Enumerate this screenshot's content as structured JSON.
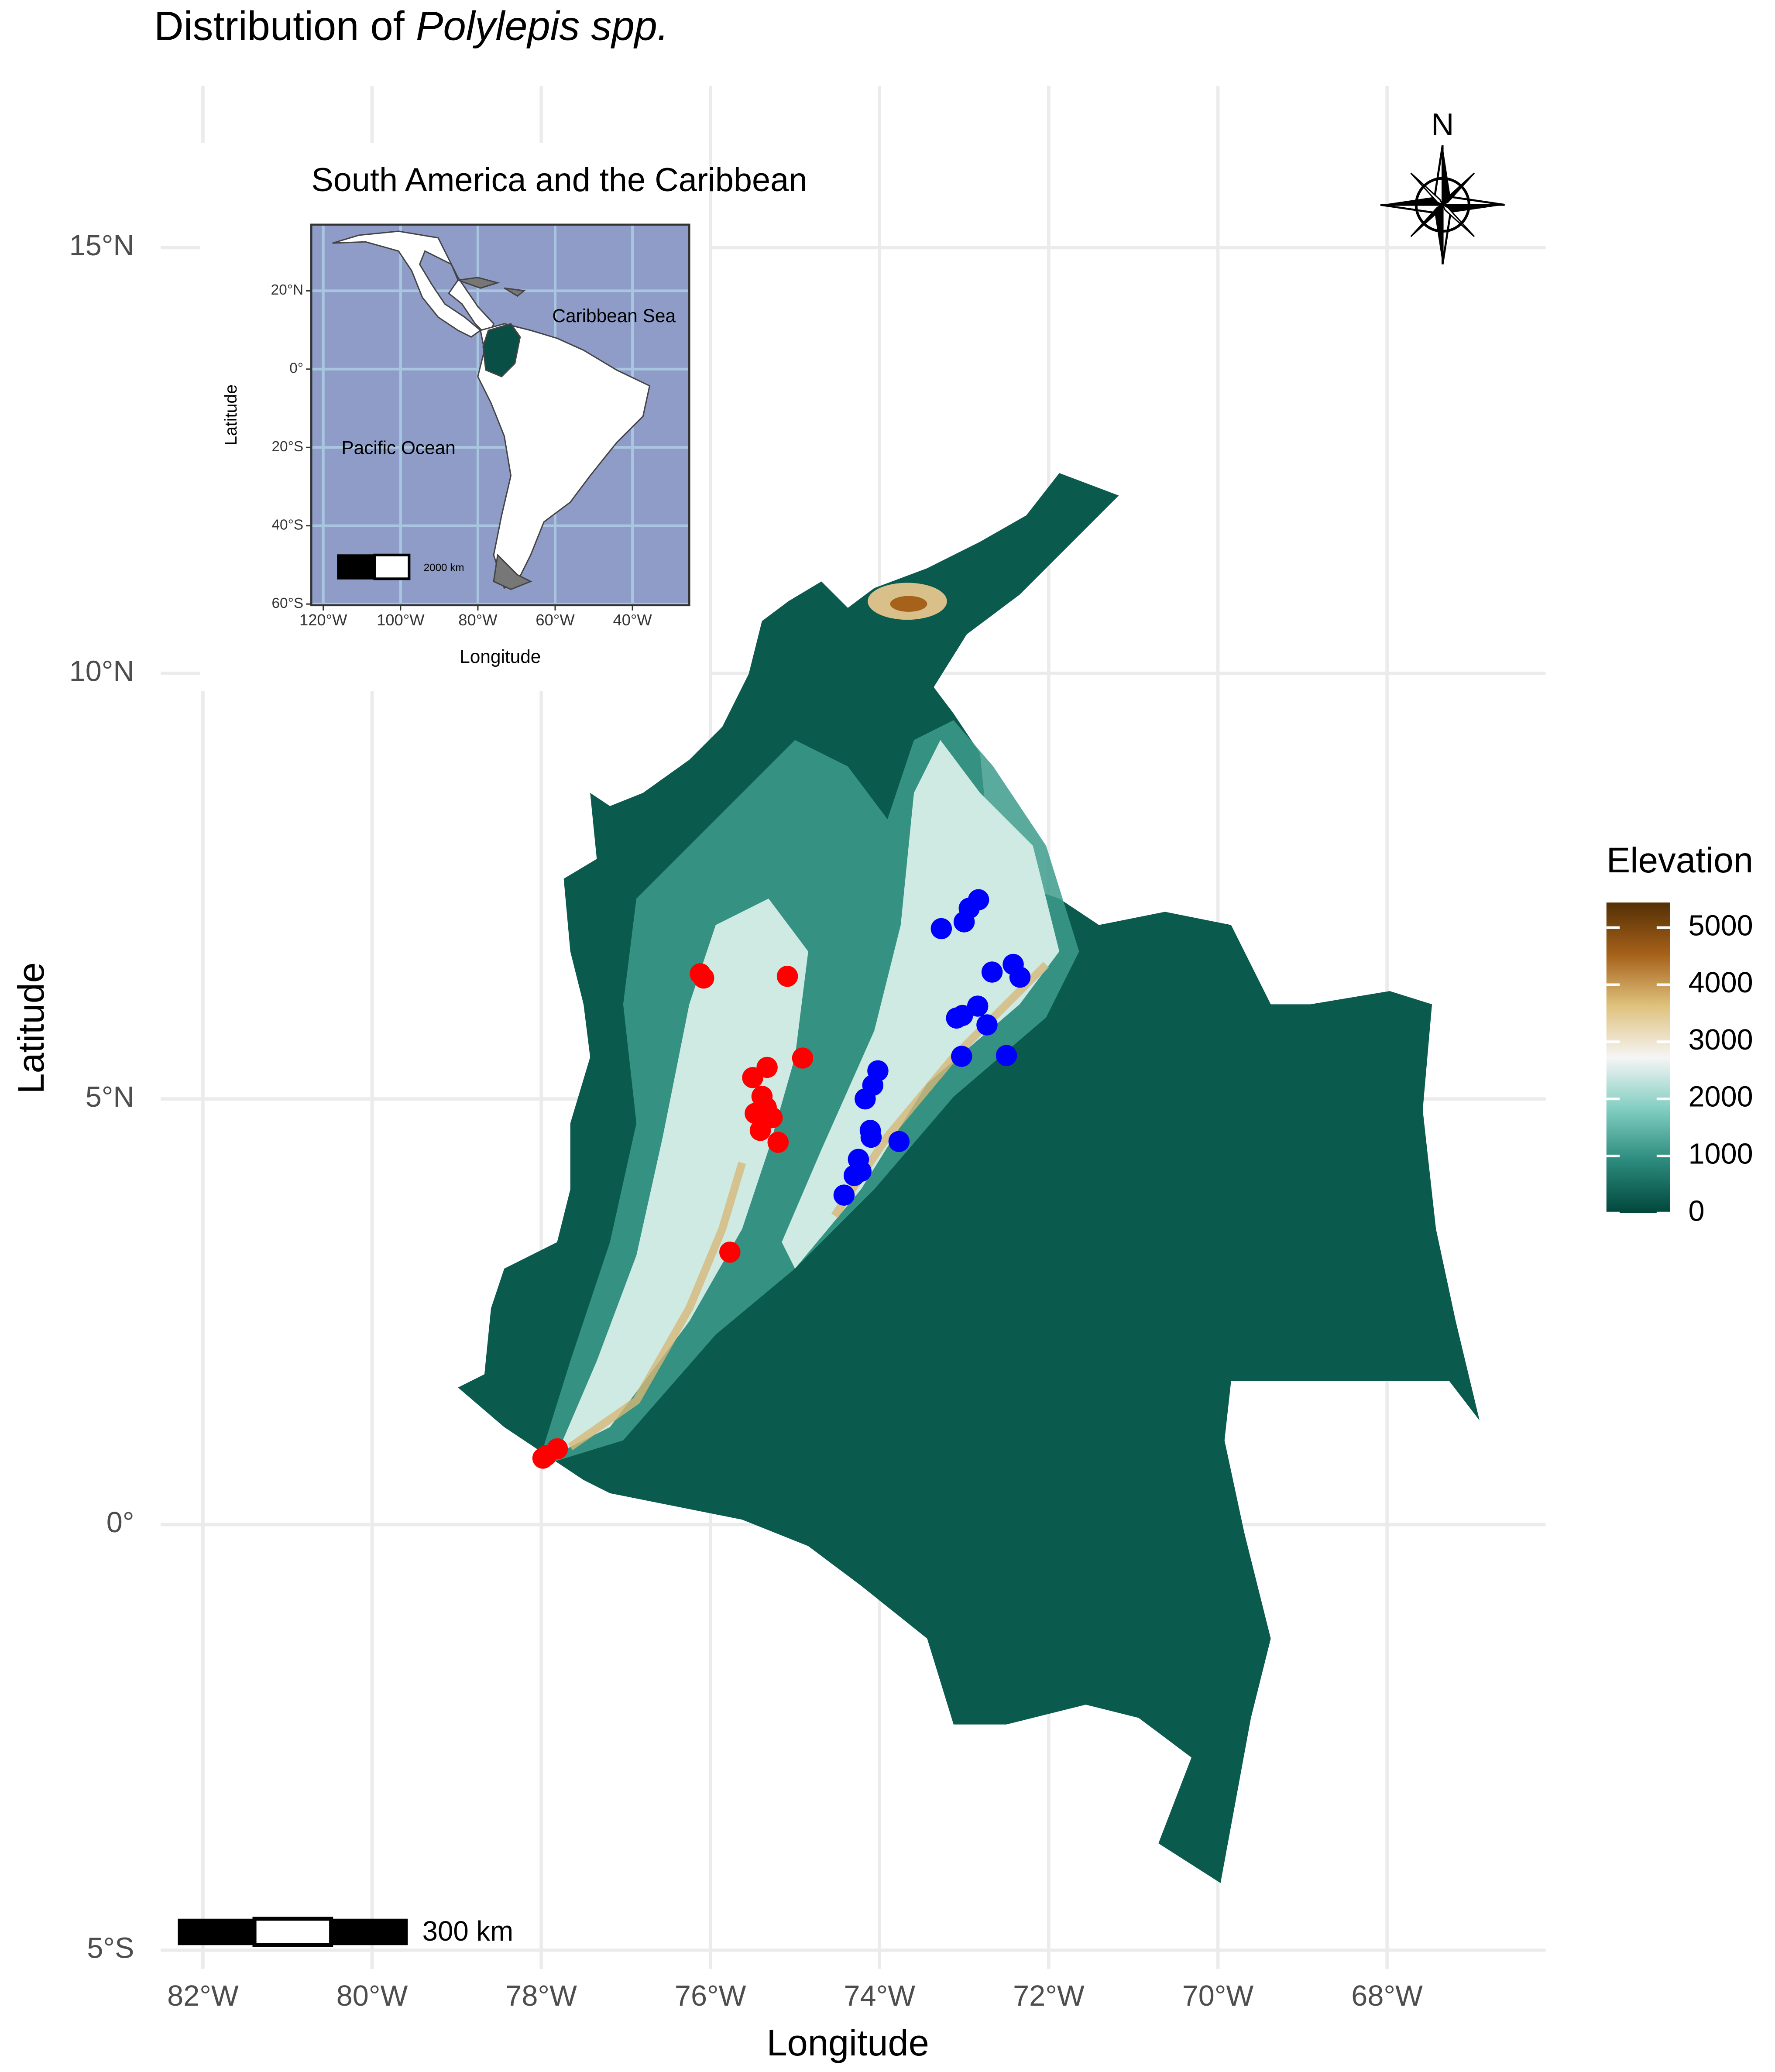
{
  "chart_data": [
    {
      "type": "scatter",
      "title": "Distribution of ",
      "title_italic": "Polylepis spp.",
      "xlabel": "Longitude",
      "ylabel": "Latitude",
      "xlim": [
        -82.5,
        -66.125
      ],
      "ylim": [
        -5.22,
        16.9
      ],
      "xticks": [
        {
          "value": -82,
          "label": "82°W"
        },
        {
          "value": -80,
          "label": "80°W"
        },
        {
          "value": -78,
          "label": "78°W"
        },
        {
          "value": -76,
          "label": "76°W"
        },
        {
          "value": -74,
          "label": "74°W"
        },
        {
          "value": -72,
          "label": "72°W"
        },
        {
          "value": -70,
          "label": "70°W"
        },
        {
          "value": -68,
          "label": "68°W"
        }
      ],
      "yticks": [
        {
          "value": -5,
          "label": "5°S"
        },
        {
          "value": 0,
          "label": "0°"
        },
        {
          "value": 5,
          "label": "5°N"
        },
        {
          "value": 10,
          "label": "10°N"
        },
        {
          "value": 15,
          "label": "15°N"
        }
      ],
      "grid": true,
      "series": [
        {
          "color": "#ff0000",
          "x": [
            -76.12,
            -76.08,
            -75.09,
            -74.91,
            -75.33,
            -75.5,
            -75.39,
            -75.47,
            -75.27,
            -75.41,
            -75.34,
            -75.2,
            -75.77,
            -77.94,
            -77.81,
            -77.98
          ],
          "y": [
            6.47,
            6.42,
            6.44,
            5.48,
            5.37,
            5.25,
            5.03,
            4.83,
            4.78,
            4.63,
            4.9,
            4.49,
            3.2,
            0.81,
            0.89,
            0.78
          ]
        },
        {
          "color": "#0000ff",
          "x": [
            -73.27,
            -73.0,
            -72.94,
            -72.83,
            -72.42,
            -72.34,
            -72.67,
            -73.09,
            -72.84,
            -72.73,
            -73.03,
            -72.5,
            -74.02,
            -74.08,
            -74.17,
            -74.11,
            -73.77,
            -74.25,
            -74.3,
            -74.42,
            -74.22,
            -73.02,
            -74.1
          ],
          "y": [
            7.0,
            7.08,
            7.24,
            7.34,
            6.58,
            6.43,
            6.49,
            5.95,
            6.09,
            5.87,
            5.5,
            5.51,
            5.33,
            5.16,
            5.0,
            4.63,
            4.5,
            4.29,
            4.1,
            3.87,
            4.15,
            5.98,
            4.55
          ]
        }
      ],
      "north_label": "N",
      "scale_bar_label": "300 km",
      "legend": {
        "title": "Elevation",
        "lim": [
          0,
          5440
        ],
        "ticks": [
          0,
          1000,
          2000,
          3000,
          4000,
          5000
        ],
        "colors": [
          "#01463b",
          "#2b8a7c",
          "#80cdc1",
          "#f5f5f5",
          "#dfc27d",
          "#a6611a",
          "#543005"
        ]
      }
    },
    {
      "type": "map",
      "title": "South America and the Caribbean",
      "xlabel": "Longitude",
      "ylabel": "Latitude",
      "xlim": [
        -123.1,
        -25.3
      ],
      "ylim": [
        -60.3,
        36.9
      ],
      "xticks": [
        {
          "value": -120,
          "label": "120°W"
        },
        {
          "value": -100,
          "label": "100°W"
        },
        {
          "value": -80,
          "label": "80°W"
        },
        {
          "value": -60,
          "label": "60°W"
        },
        {
          "value": -40,
          "label": "40°W"
        }
      ],
      "yticks": [
        {
          "value": 20,
          "label": "20°N"
        },
        {
          "value": 0,
          "label": "0°"
        },
        {
          "value": -20,
          "label": "20°S"
        },
        {
          "value": -40,
          "label": "40°S"
        },
        {
          "value": -60,
          "label": "60°S"
        }
      ],
      "annotations": [
        "Caribbean Sea",
        "Pacific Ocean"
      ],
      "scale_bar_label": "2000 km",
      "background": "#8f9cc8",
      "grid_color": "#a9c6e0"
    }
  ]
}
